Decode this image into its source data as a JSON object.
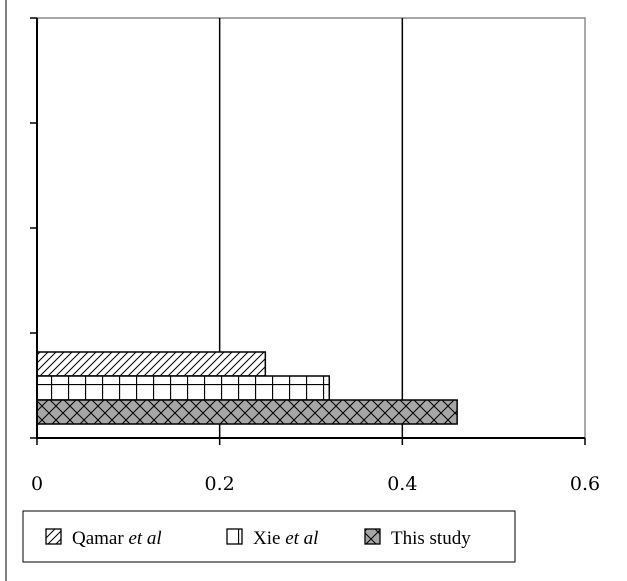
{
  "chart_data": {
    "type": "bar",
    "orientation": "horizontal",
    "title": "",
    "xlabel": "",
    "ylabel": "",
    "xlim": [
      0,
      0.6
    ],
    "xticks": [
      0,
      0.2,
      0.4,
      0.6
    ],
    "xtick_labels": [
      "0",
      "0.2",
      "0.4",
      "0.6"
    ],
    "grid": "vertical lines at major ticks",
    "legend_position": "bottom",
    "series": [
      {
        "name": "Qamar et al",
        "legend_main": "Qamar ",
        "legend_em": "et al",
        "value": 0.25,
        "pattern": "diagonal-hatch",
        "fill": "#ffffff"
      },
      {
        "name": "Xie et al",
        "legend_main": "Xie ",
        "legend_em": "et al",
        "value": 0.32,
        "pattern": "brick",
        "fill": "#ffffff"
      },
      {
        "name": "This study",
        "legend_main": "This study",
        "legend_em": "",
        "value": 0.46,
        "pattern": "cross-hatch",
        "fill": "#a6a6a6"
      }
    ]
  }
}
